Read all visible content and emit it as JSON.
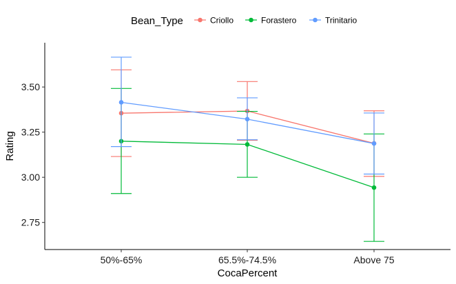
{
  "chart_data": {
    "type": "line",
    "xlabel": "CocaPercent",
    "ylabel": "Rating",
    "categories": [
      "50%-65%",
      "65.5%-74.5%",
      "Above 75"
    ],
    "ylim": [
      2.6,
      3.745
    ],
    "yticks": [
      2.75,
      3.0,
      3.25,
      3.5
    ],
    "ytick_labels": [
      "2.75",
      "3.00",
      "3.25",
      "3.50"
    ],
    "grid": false,
    "legend": {
      "title": "Bean_Type",
      "position": "top"
    },
    "error_bars": true,
    "series": [
      {
        "name": "Criollo",
        "color": "#F8766D",
        "values": [
          3.355,
          3.367,
          3.188
        ],
        "lower": [
          3.115,
          3.205,
          3.005
        ],
        "upper": [
          3.595,
          3.53,
          3.368
        ]
      },
      {
        "name": "Forastero",
        "color": "#00BA38",
        "values": [
          3.2,
          3.182,
          2.943
        ],
        "lower": [
          2.91,
          3.0,
          2.645
        ],
        "upper": [
          3.492,
          3.365,
          3.24
        ]
      },
      {
        "name": "Trinitario",
        "color": "#619CFF",
        "values": [
          3.415,
          3.322,
          3.187
        ],
        "lower": [
          3.17,
          3.208,
          3.018
        ],
        "upper": [
          3.665,
          3.44,
          3.356
        ]
      }
    ]
  }
}
